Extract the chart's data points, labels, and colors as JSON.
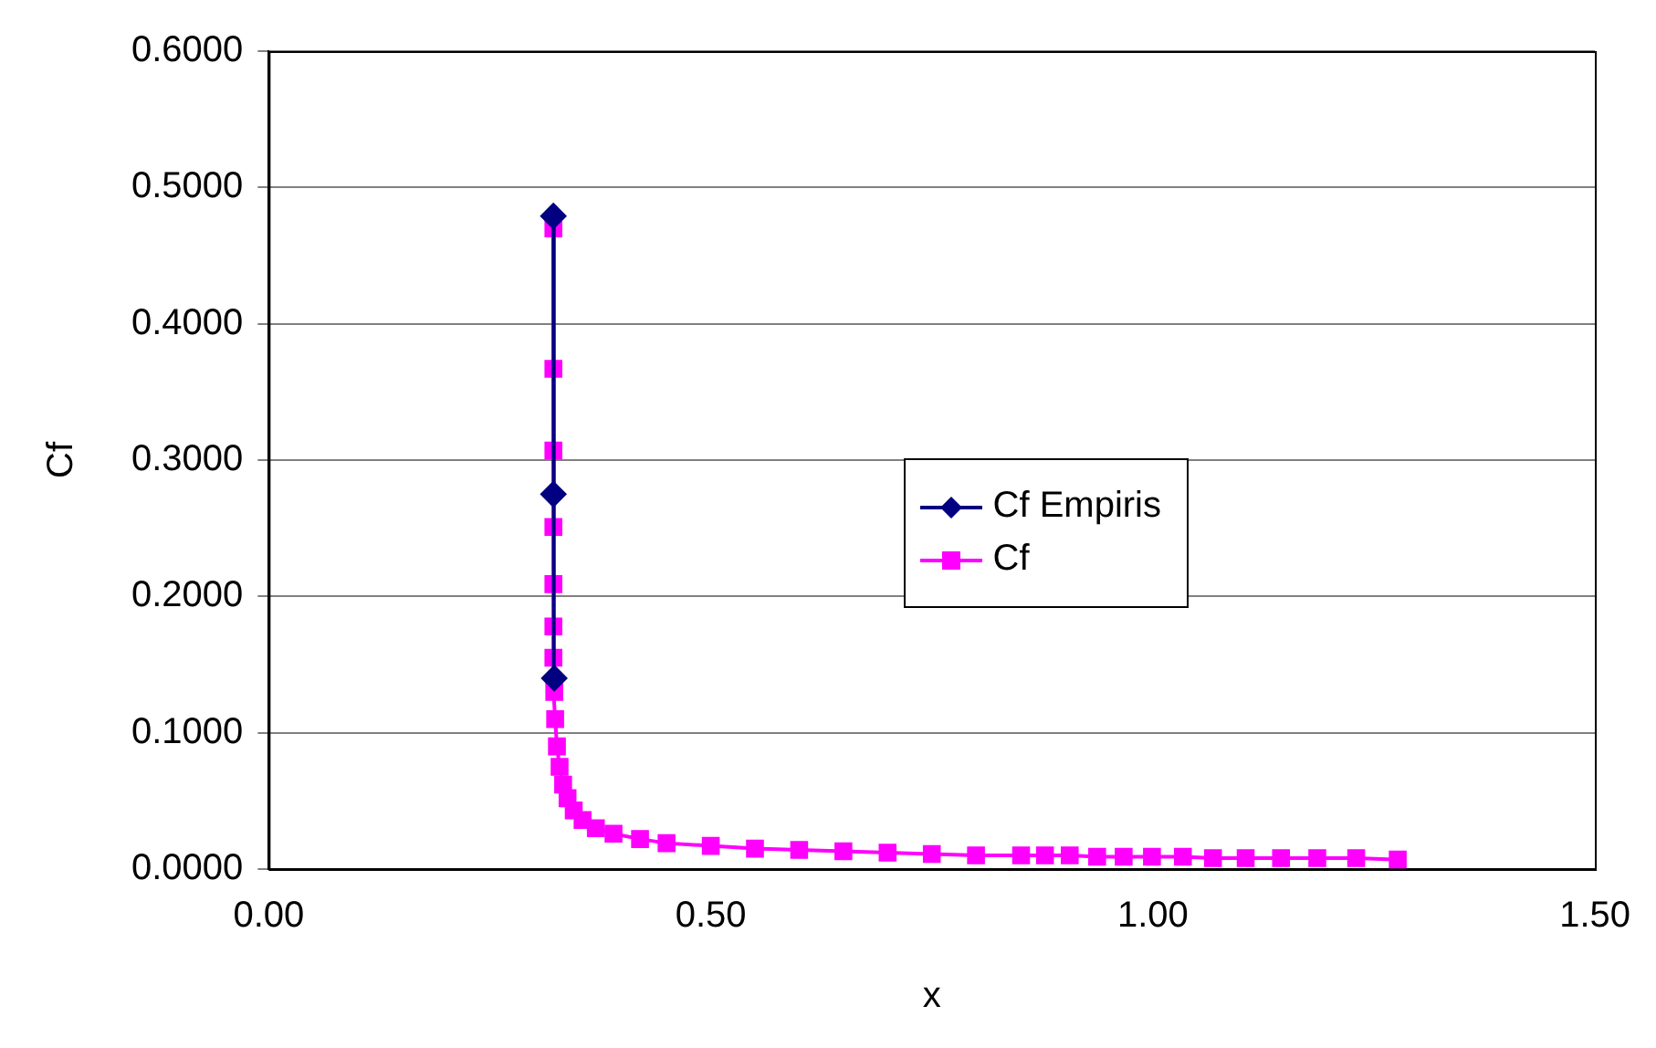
{
  "chart_data": {
    "type": "line",
    "xlabel": "x",
    "ylabel": "Cf",
    "xlim": [
      0,
      1.5
    ],
    "xticks": [
      {
        "value": 0,
        "label": "0.00"
      },
      {
        "value": 0.5,
        "label": "0.50"
      },
      {
        "value": 1,
        "label": "1.00"
      },
      {
        "value": 1.5,
        "label": "1.50"
      }
    ],
    "ylim": [
      0,
      0.6
    ],
    "yticks": [
      {
        "value": 0,
        "label": "0.0000"
      },
      {
        "value": 0.1,
        "label": "0.1000"
      },
      {
        "value": 0.2,
        "label": "0.2000"
      },
      {
        "value": 0.3,
        "label": "0.3000"
      },
      {
        "value": 0.4,
        "label": "0.4000"
      },
      {
        "value": 0.5,
        "label": "0.5000"
      },
      {
        "value": 0.6,
        "label": "0.6000"
      }
    ],
    "grid": "y",
    "legend": "center",
    "line_style": "solid",
    "series": [
      {
        "name": "Cf Empiris",
        "color": "#000080",
        "marker": "diamond",
        "x": [
          0.322,
          0.322,
          0.323
        ],
        "values": [
          0.479,
          0.275,
          0.14
        ]
      },
      {
        "name": "Cf",
        "color": "#ff00ff",
        "marker": "square",
        "x": [
          0.322,
          0.322,
          0.322,
          0.322,
          0.322,
          0.322,
          0.322,
          0.323,
          0.324,
          0.326,
          0.329,
          0.333,
          0.338,
          0.345,
          0.355,
          0.37,
          0.39,
          0.42,
          0.45,
          0.5,
          0.55,
          0.6,
          0.65,
          0.7,
          0.75,
          0.8,
          0.851,
          0.878,
          0.906,
          0.937,
          0.967,
          0.999,
          1.034,
          1.068,
          1.105,
          1.145,
          1.186,
          1.23,
          1.277
        ],
        "values": [
          0.47,
          0.367,
          0.307,
          0.251,
          0.209,
          0.178,
          0.155,
          0.13,
          0.11,
          0.09,
          0.075,
          0.062,
          0.052,
          0.043,
          0.036,
          0.03,
          0.026,
          0.022,
          0.019,
          0.017,
          0.015,
          0.014,
          0.013,
          0.012,
          0.011,
          0.01,
          0.01,
          0.01,
          0.01,
          0.009,
          0.009,
          0.009,
          0.009,
          0.008,
          0.008,
          0.008,
          0.008,
          0.008,
          0.007
        ]
      }
    ]
  }
}
